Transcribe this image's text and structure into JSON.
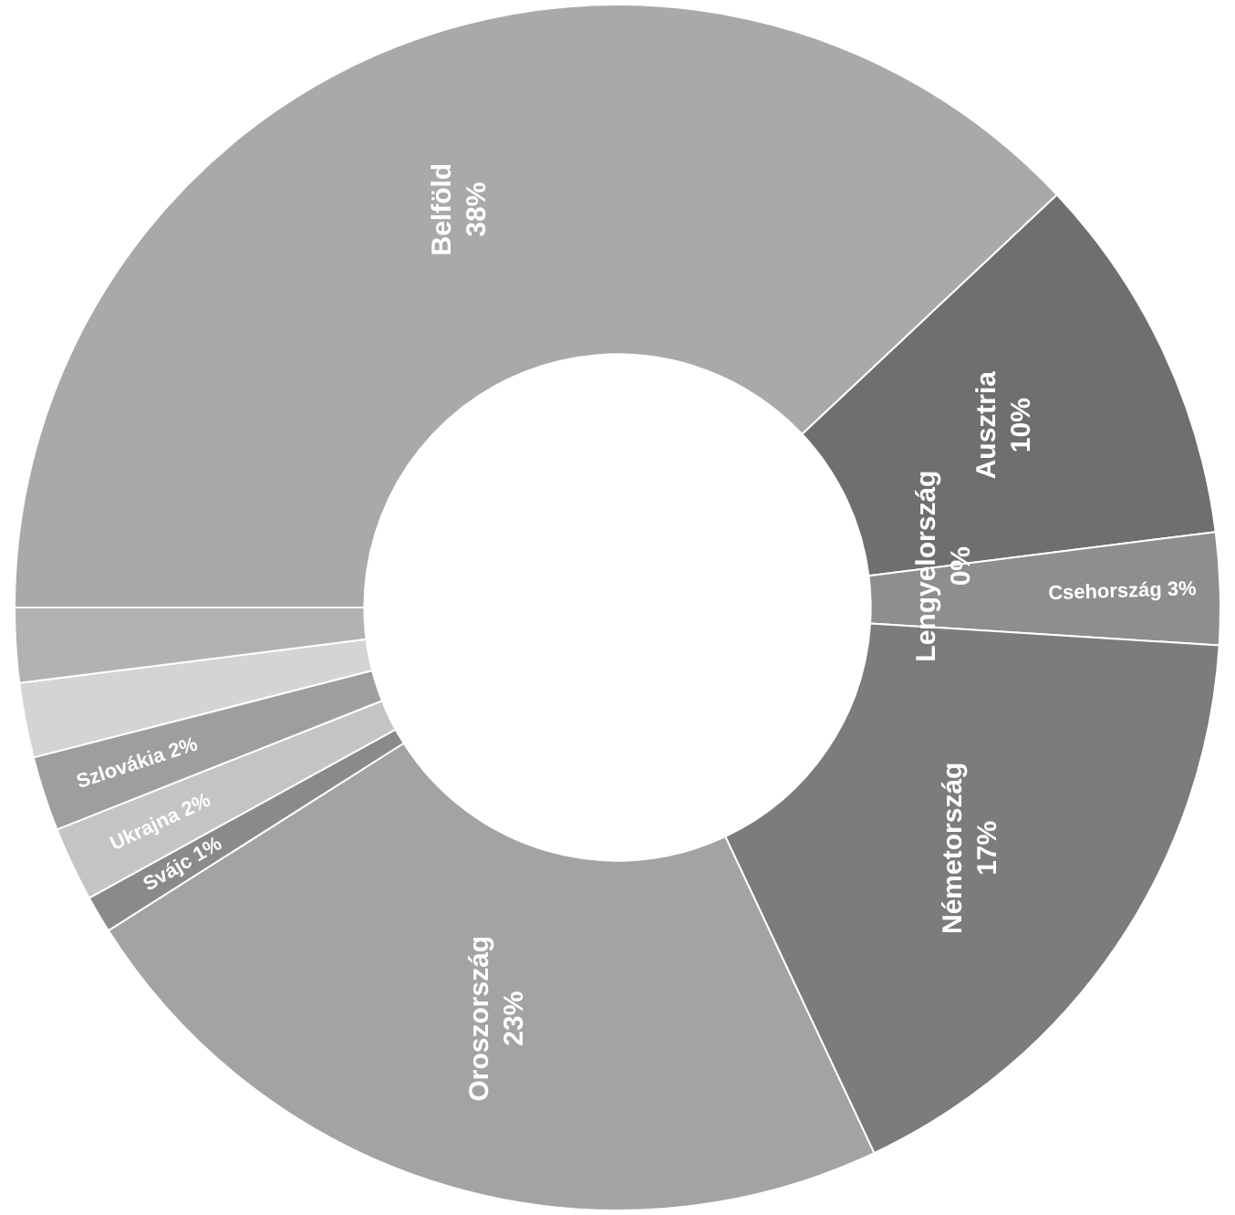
{
  "chart_data": {
    "type": "donut",
    "categories": [
      "Belföld",
      "Ausztria",
      "Lengyelország",
      "Csehország",
      "Németország",
      "Oroszország",
      "Svájc",
      "Ukrajna",
      "Szlovákia",
      null,
      null
    ],
    "values": [
      38,
      10,
      0,
      3,
      17,
      23,
      1,
      2,
      2,
      2,
      2
    ],
    "value_labels": [
      "38%",
      "10%",
      "0%",
      "3%",
      "17%",
      "23%",
      "1%",
      "2%",
      "2%",
      null,
      null
    ],
    "colors": [
      "#a9a9a9",
      "#6f6f6f",
      "#bdbdbd",
      "#8e8e8e",
      "#7c7c7c",
      "#a3a3a3",
      "#8a8a8a",
      "#c4c4c4",
      "#9e9e9e",
      "#d4d4d4",
      "#b2b2b2"
    ],
    "legend": false
  }
}
